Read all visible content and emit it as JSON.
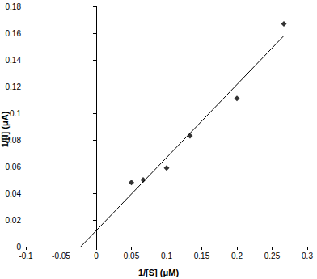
{
  "chart_data": {
    "type": "scatter",
    "x_label": "1/[S] (μM)",
    "y_label": "1/[I] (μA)",
    "series": [
      {
        "type": "scatter",
        "marker": "diamond",
        "color": "#000000",
        "values": [
          [
            0.05,
            0.048
          ],
          [
            0.0667,
            0.05
          ],
          [
            0.1,
            0.059
          ],
          [
            0.1333,
            0.083
          ],
          [
            0.2,
            0.111
          ],
          [
            0.2667,
            0.167
          ]
        ]
      },
      {
        "type": "line",
        "line_style": "solid",
        "color": "#000000",
        "values": [
          [
            -0.022,
            0.0
          ],
          [
            0.2667,
            0.158
          ]
        ]
      }
    ],
    "xlim": [
      -0.1,
      0.3
    ],
    "xticks": [
      -0.1,
      -0.05,
      0,
      0.05,
      0.1,
      0.15,
      0.2,
      0.25,
      0.3
    ],
    "ylim": [
      0,
      0.18
    ],
    "yticks": [
      0,
      0.02,
      0.04,
      0.06,
      0.08,
      0.1,
      0.12,
      0.14,
      0.16,
      0.18
    ],
    "grid": false
  }
}
